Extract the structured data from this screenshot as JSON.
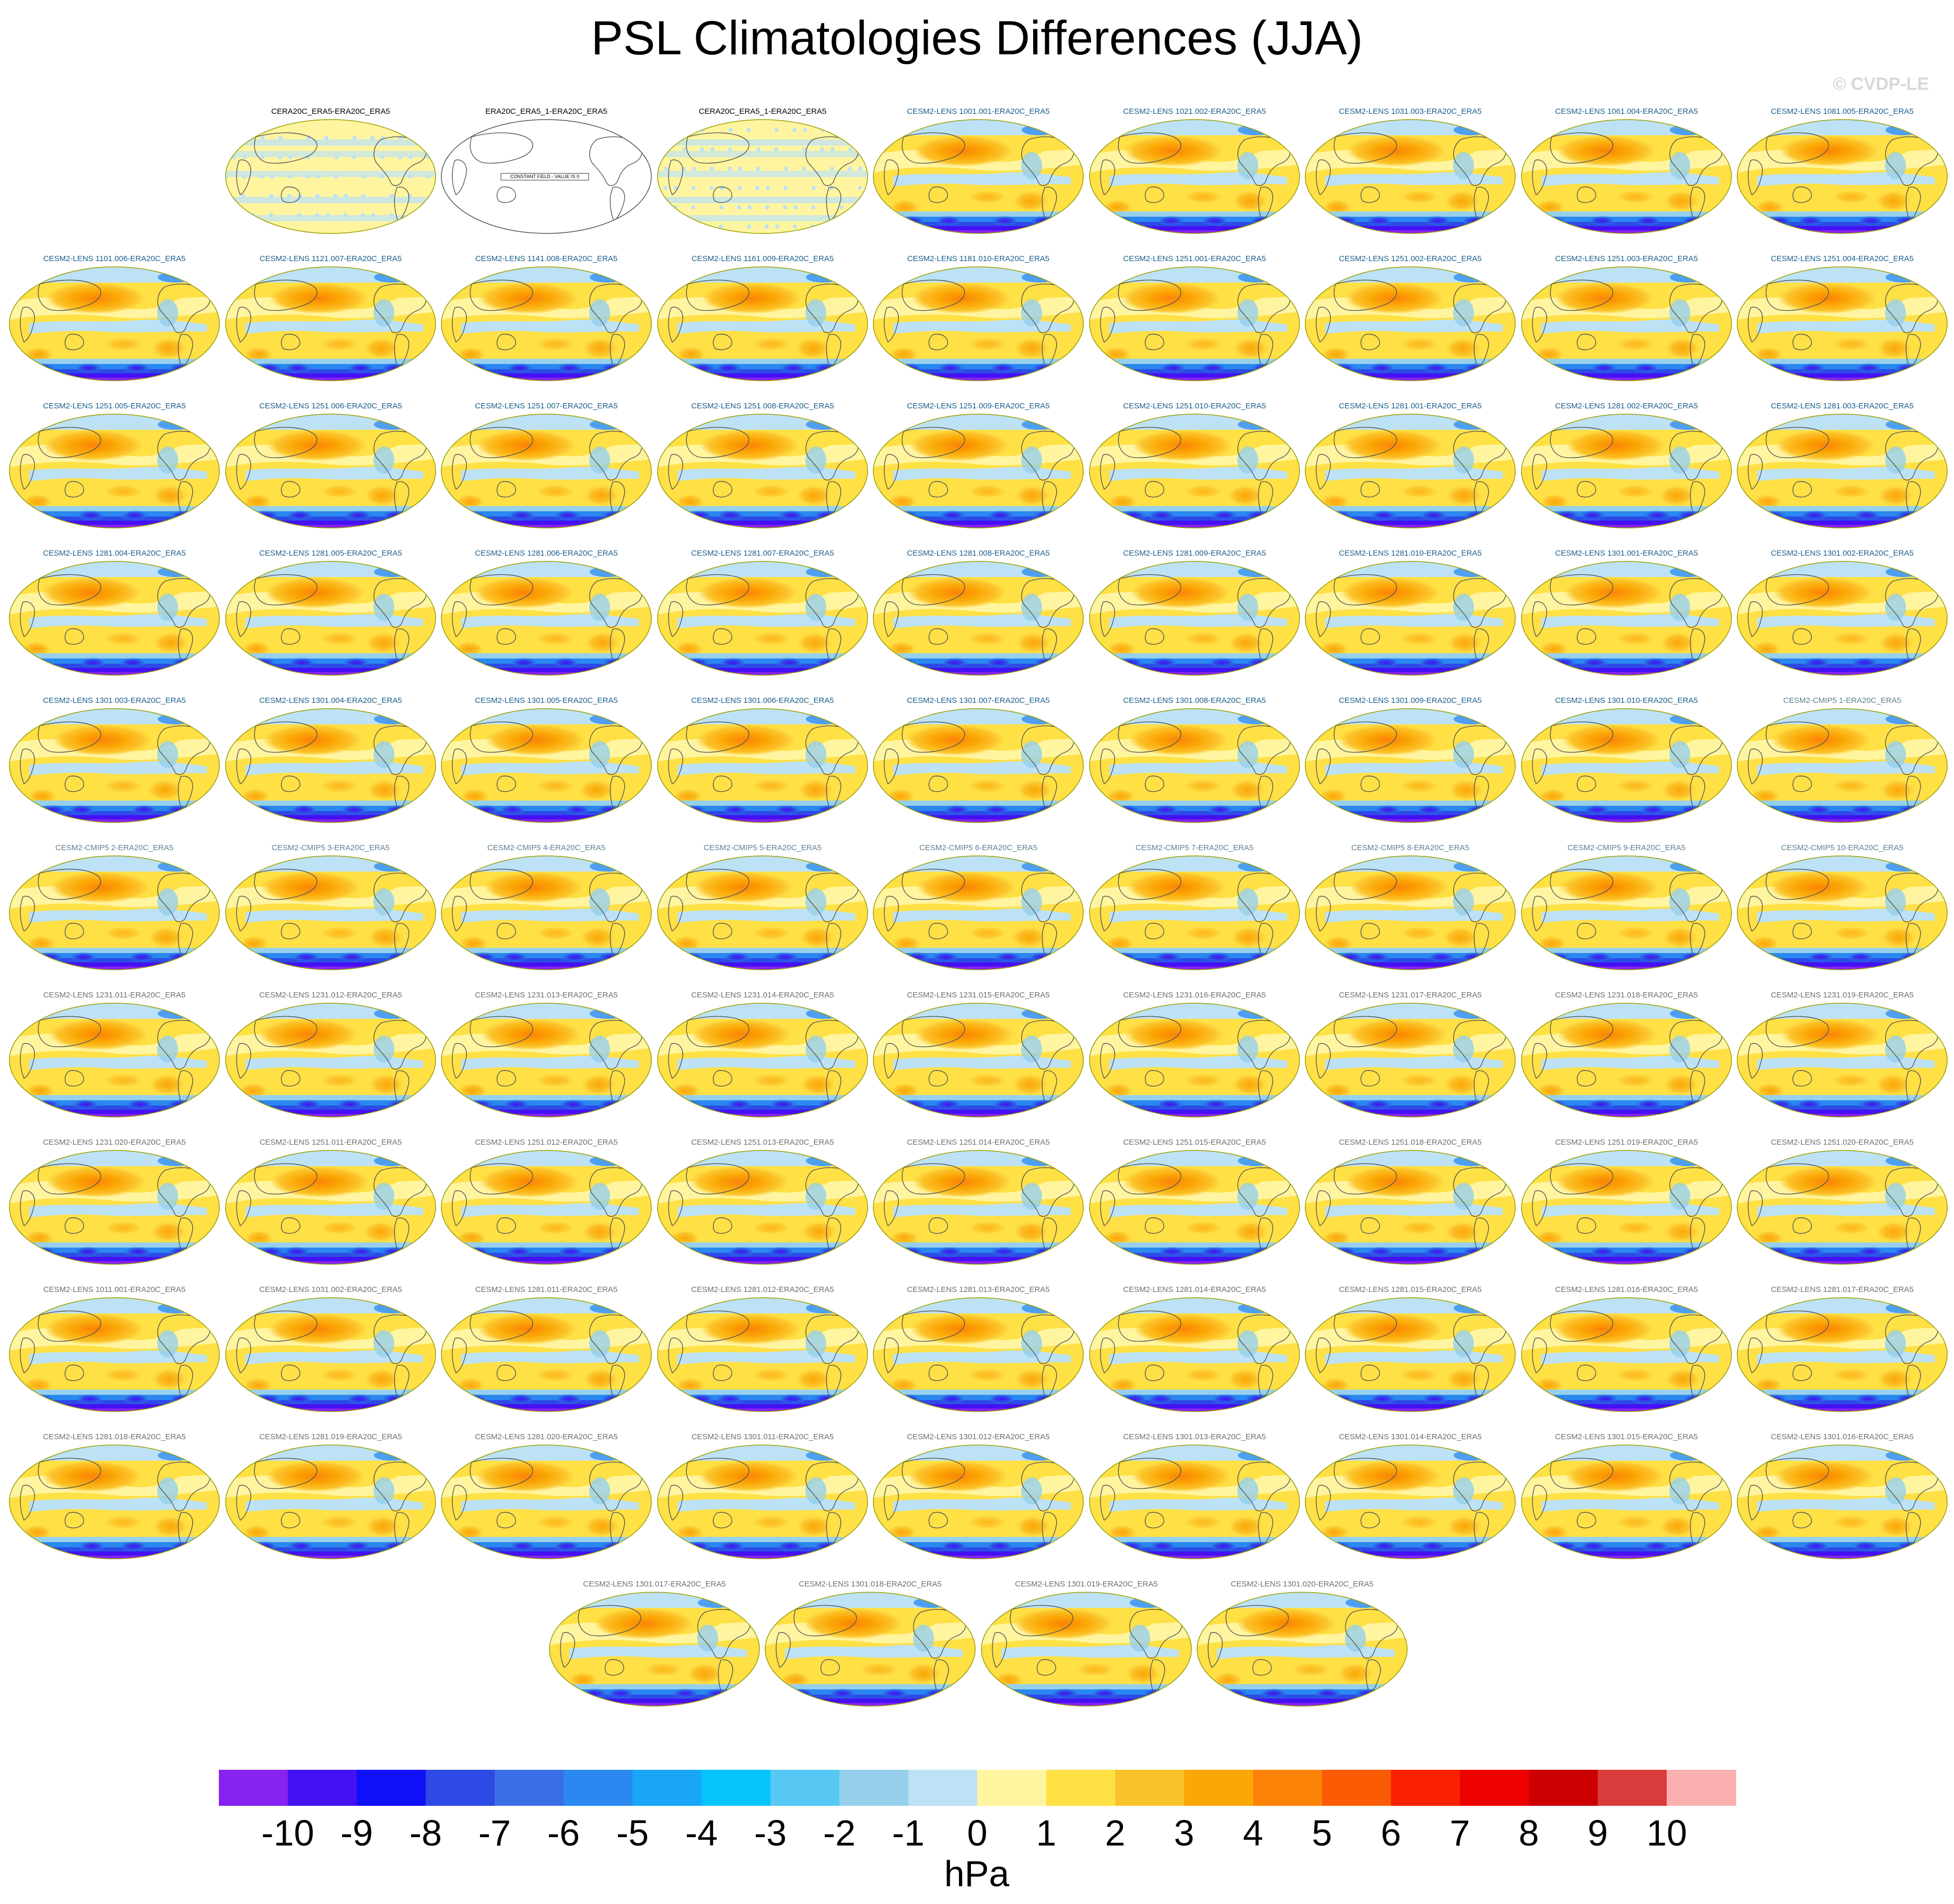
{
  "title": "PSL Climatologies Differences (JJA)",
  "credit": "© CVDP-LE",
  "units": "hPa",
  "constant_field_text": "CONSTANT FIELD - VALUE IS 0",
  "label_colors": {
    "obs": "#000000",
    "lens": "#1a5e8c",
    "cmip": "#5f7f8f",
    "other": "#6f6f6f"
  },
  "chart_data": {
    "type": "heatmap",
    "description_text": "PSL Climatologies Differences (JJA)",
    "colorbar": {
      "ticks": [
        "-10",
        "-9",
        "-8",
        "-7",
        "-6",
        "-5",
        "-4",
        "-3",
        "-2",
        "-1",
        "0",
        "1",
        "2",
        "3",
        "4",
        "5",
        "6",
        "7",
        "8",
        "9",
        "10"
      ],
      "colors": [
        "#8722f0",
        "#4411f5",
        "#1010f8",
        "#2d4ae6",
        "#3a6ee6",
        "#2a88f0",
        "#19a6f8",
        "#05c4fb",
        "#56c8f3",
        "#96d0ec",
        "#bde2f5",
        "#fff5a0",
        "#ffe045",
        "#fbc32a",
        "#fba706",
        "#fb8307",
        "#fb5b04",
        "#fb2003",
        "#ef0000",
        "#cc0000",
        "#d83c3c",
        "#fbb0b0"
      ]
    },
    "panels": [
      {
        "label": "CERA20C_ERA5-ERA20C_ERA5",
        "group": "obs",
        "style": "obs"
      },
      {
        "label": "ERA20C_ERA5_1-ERA20C_ERA5",
        "group": "obs",
        "style": "constant"
      },
      {
        "label": "CERA20C_ERA5_1-ERA20C_ERA5",
        "group": "obs",
        "style": "obs"
      },
      {
        "label": "CESM2-LENS 1001.001-ERA20C_ERA5",
        "group": "lens",
        "style": "model"
      },
      {
        "label": "CESM2-LENS 1021.002-ERA20C_ERA5",
        "group": "lens",
        "style": "model"
      },
      {
        "label": "CESM2-LENS 1031.003-ERA20C_ERA5",
        "group": "lens",
        "style": "model"
      },
      {
        "label": "CESM2-LENS 1061.004-ERA20C_ERA5",
        "group": "lens",
        "style": "model"
      },
      {
        "label": "CESM2-LENS 1081.005-ERA20C_ERA5",
        "group": "lens",
        "style": "model"
      },
      {
        "label": "CESM2-LENS 1101.006-ERA20C_ERA5",
        "group": "lens",
        "style": "model"
      },
      {
        "label": "CESM2-LENS 1121.007-ERA20C_ERA5",
        "group": "lens",
        "style": "model"
      },
      {
        "label": "CESM2-LENS 1141.008-ERA20C_ERA5",
        "group": "lens",
        "style": "model"
      },
      {
        "label": "CESM2-LENS 1161.009-ERA20C_ERA5",
        "group": "lens",
        "style": "model"
      },
      {
        "label": "CESM2-LENS 1181.010-ERA20C_ERA5",
        "group": "lens",
        "style": "model"
      },
      {
        "label": "CESM2-LENS 1251.001-ERA20C_ERA5",
        "group": "lens",
        "style": "model"
      },
      {
        "label": "CESM2-LENS 1251.002-ERA20C_ERA5",
        "group": "lens",
        "style": "model"
      },
      {
        "label": "CESM2-LENS 1251.003-ERA20C_ERA5",
        "group": "lens",
        "style": "model"
      },
      {
        "label": "CESM2-LENS 1251.004-ERA20C_ERA5",
        "group": "lens",
        "style": "model"
      },
      {
        "label": "CESM2-LENS 1251.005-ERA20C_ERA5",
        "group": "lens",
        "style": "model"
      },
      {
        "label": "CESM2-LENS 1251.006-ERA20C_ERA5",
        "group": "lens",
        "style": "model"
      },
      {
        "label": "CESM2-LENS 1251.007-ERA20C_ERA5",
        "group": "lens",
        "style": "model"
      },
      {
        "label": "CESM2-LENS 1251.008-ERA20C_ERA5",
        "group": "lens",
        "style": "model"
      },
      {
        "label": "CESM2-LENS 1251.009-ERA20C_ERA5",
        "group": "lens",
        "style": "model"
      },
      {
        "label": "CESM2-LENS 1251.010-ERA20C_ERA5",
        "group": "lens",
        "style": "model"
      },
      {
        "label": "CESM2-LENS 1281.001-ERA20C_ERA5",
        "group": "lens",
        "style": "model"
      },
      {
        "label": "CESM2-LENS 1281.002-ERA20C_ERA5",
        "group": "lens",
        "style": "model"
      },
      {
        "label": "CESM2-LENS 1281.003-ERA20C_ERA5",
        "group": "lens",
        "style": "model"
      },
      {
        "label": "CESM2-LENS 1281.004-ERA20C_ERA5",
        "group": "lens",
        "style": "model"
      },
      {
        "label": "CESM2-LENS 1281.005-ERA20C_ERA5",
        "group": "lens",
        "style": "model"
      },
      {
        "label": "CESM2-LENS 1281.006-ERA20C_ERA5",
        "group": "lens",
        "style": "model"
      },
      {
        "label": "CESM2-LENS 1281.007-ERA20C_ERA5",
        "group": "lens",
        "style": "model"
      },
      {
        "label": "CESM2-LENS 1281.008-ERA20C_ERA5",
        "group": "lens",
        "style": "model"
      },
      {
        "label": "CESM2-LENS 1281.009-ERA20C_ERA5",
        "group": "lens",
        "style": "model"
      },
      {
        "label": "CESM2-LENS 1281.010-ERA20C_ERA5",
        "group": "lens",
        "style": "model"
      },
      {
        "label": "CESM2-LENS 1301.001-ERA20C_ERA5",
        "group": "lens",
        "style": "model"
      },
      {
        "label": "CESM2-LENS 1301.002-ERA20C_ERA5",
        "group": "lens",
        "style": "model"
      },
      {
        "label": "CESM2-LENS 1301.003-ERA20C_ERA5",
        "group": "lens",
        "style": "model"
      },
      {
        "label": "CESM2-LENS 1301.004-ERA20C_ERA5",
        "group": "lens",
        "style": "model"
      },
      {
        "label": "CESM2-LENS 1301.005-ERA20C_ERA5",
        "group": "lens",
        "style": "model"
      },
      {
        "label": "CESM2-LENS 1301.006-ERA20C_ERA5",
        "group": "lens",
        "style": "model"
      },
      {
        "label": "CESM2-LENS 1301.007-ERA20C_ERA5",
        "group": "lens",
        "style": "model"
      },
      {
        "label": "CESM2-LENS 1301.008-ERA20C_ERA5",
        "group": "lens",
        "style": "model"
      },
      {
        "label": "CESM2-LENS 1301.009-ERA20C_ERA5",
        "group": "lens",
        "style": "model"
      },
      {
        "label": "CESM2-LENS 1301.010-ERA20C_ERA5",
        "group": "lens",
        "style": "model"
      },
      {
        "label": "CESM2-CMIP5 1-ERA20C_ERA5",
        "group": "cmip",
        "style": "model"
      },
      {
        "label": "CESM2-CMIP5 2-ERA20C_ERA5",
        "group": "cmip",
        "style": "model"
      },
      {
        "label": "CESM2-CMIP5 3-ERA20C_ERA5",
        "group": "cmip",
        "style": "model"
      },
      {
        "label": "CESM2-CMIP5 4-ERA20C_ERA5",
        "group": "cmip",
        "style": "model"
      },
      {
        "label": "CESM2-CMIP5 5-ERA20C_ERA5",
        "group": "cmip",
        "style": "model"
      },
      {
        "label": "CESM2-CMIP5 6-ERA20C_ERA5",
        "group": "cmip",
        "style": "model"
      },
      {
        "label": "CESM2-CMIP5 7-ERA20C_ERA5",
        "group": "cmip",
        "style": "model"
      },
      {
        "label": "CESM2-CMIP5 8-ERA20C_ERA5",
        "group": "cmip",
        "style": "model"
      },
      {
        "label": "CESM2-CMIP5 9-ERA20C_ERA5",
        "group": "cmip",
        "style": "model"
      },
      {
        "label": "CESM2-CMIP5 10-ERA20C_ERA5",
        "group": "cmip",
        "style": "model"
      },
      {
        "label": "CESM2-LENS 1231.011-ERA20C_ERA5",
        "group": "other",
        "style": "model"
      },
      {
        "label": "CESM2-LENS 1231.012-ERA20C_ERA5",
        "group": "other",
        "style": "model"
      },
      {
        "label": "CESM2-LENS 1231.013-ERA20C_ERA5",
        "group": "other",
        "style": "model"
      },
      {
        "label": "CESM2-LENS 1231.014-ERA20C_ERA5",
        "group": "other",
        "style": "model"
      },
      {
        "label": "CESM2-LENS 1231.015-ERA20C_ERA5",
        "group": "other",
        "style": "model"
      },
      {
        "label": "CESM2-LENS 1231.016-ERA20C_ERA5",
        "group": "other",
        "style": "model"
      },
      {
        "label": "CESM2-LENS 1231.017-ERA20C_ERA5",
        "group": "other",
        "style": "model"
      },
      {
        "label": "CESM2-LENS 1231.018-ERA20C_ERA5",
        "group": "other",
        "style": "model"
      },
      {
        "label": "CESM2-LENS 1231.019-ERA20C_ERA5",
        "group": "other",
        "style": "model"
      },
      {
        "label": "CESM2-LENS 1231.020-ERA20C_ERA5",
        "group": "other",
        "style": "model"
      },
      {
        "label": "CESM2-LENS 1251.011-ERA20C_ERA5",
        "group": "other",
        "style": "model"
      },
      {
        "label": "CESM2-LENS 1251.012-ERA20C_ERA5",
        "group": "other",
        "style": "model"
      },
      {
        "label": "CESM2-LENS 1251.013-ERA20C_ERA5",
        "group": "other",
        "style": "model"
      },
      {
        "label": "CESM2-LENS 1251.014-ERA20C_ERA5",
        "group": "other",
        "style": "model"
      },
      {
        "label": "CESM2-LENS 1251.015-ERA20C_ERA5",
        "group": "other",
        "style": "model"
      },
      {
        "label": "CESM2-LENS 1251.018-ERA20C_ERA5",
        "group": "other",
        "style": "model"
      },
      {
        "label": "CESM2-LENS 1251.019-ERA20C_ERA5",
        "group": "other",
        "style": "model"
      },
      {
        "label": "CESM2-LENS 1251.020-ERA20C_ERA5",
        "group": "other",
        "style": "model"
      },
      {
        "label": "CESM2-LENS 1011.001-ERA20C_ERA5",
        "group": "other",
        "style": "model"
      },
      {
        "label": "CESM2-LENS 1031.002-ERA20C_ERA5",
        "group": "other",
        "style": "model"
      },
      {
        "label": "CESM2-LENS 1281.011-ERA20C_ERA5",
        "group": "other",
        "style": "model"
      },
      {
        "label": "CESM2-LENS 1281.012-ERA20C_ERA5",
        "group": "other",
        "style": "model"
      },
      {
        "label": "CESM2-LENS 1281.013-ERA20C_ERA5",
        "group": "other",
        "style": "model"
      },
      {
        "label": "CESM2-LENS 1281.014-ERA20C_ERA5",
        "group": "other",
        "style": "model"
      },
      {
        "label": "CESM2-LENS 1281.015-ERA20C_ERA5",
        "group": "other",
        "style": "model"
      },
      {
        "label": "CESM2-LENS 1281.016-ERA20C_ERA5",
        "group": "other",
        "style": "model"
      },
      {
        "label": "CESM2-LENS 1281.017-ERA20C_ERA5",
        "group": "other",
        "style": "model"
      },
      {
        "label": "CESM2-LENS 1281.018-ERA20C_ERA5",
        "group": "other",
        "style": "model"
      },
      {
        "label": "CESM2-LENS 1281.019-ERA20C_ERA5",
        "group": "other",
        "style": "model"
      },
      {
        "label": "CESM2-LENS 1281.020-ERA20C_ERA5",
        "group": "other",
        "style": "model"
      },
      {
        "label": "CESM2-LENS 1301.011-ERA20C_ERA5",
        "group": "other",
        "style": "model"
      },
      {
        "label": "CESM2-LENS 1301.012-ERA20C_ERA5",
        "group": "other",
        "style": "model"
      },
      {
        "label": "CESM2-LENS 1301.013-ERA20C_ERA5",
        "group": "other",
        "style": "model"
      },
      {
        "label": "CESM2-LENS 1301.014-ERA20C_ERA5",
        "group": "other",
        "style": "model"
      },
      {
        "label": "CESM2-LENS 1301.015-ERA20C_ERA5",
        "group": "other",
        "style": "model"
      },
      {
        "label": "CESM2-LENS 1301.016-ERA20C_ERA5",
        "group": "other",
        "style": "model"
      },
      {
        "label": "CESM2-LENS 1301.017-ERA20C_ERA5",
        "group": "other",
        "style": "model"
      },
      {
        "label": "CESM2-LENS 1301.018-ERA20C_ERA5",
        "group": "other",
        "style": "model"
      },
      {
        "label": "CESM2-LENS 1301.019-ERA20C_ERA5",
        "group": "other",
        "style": "model"
      },
      {
        "label": "CESM2-LENS 1301.020-ERA20C_ERA5",
        "group": "other",
        "style": "model"
      }
    ]
  }
}
